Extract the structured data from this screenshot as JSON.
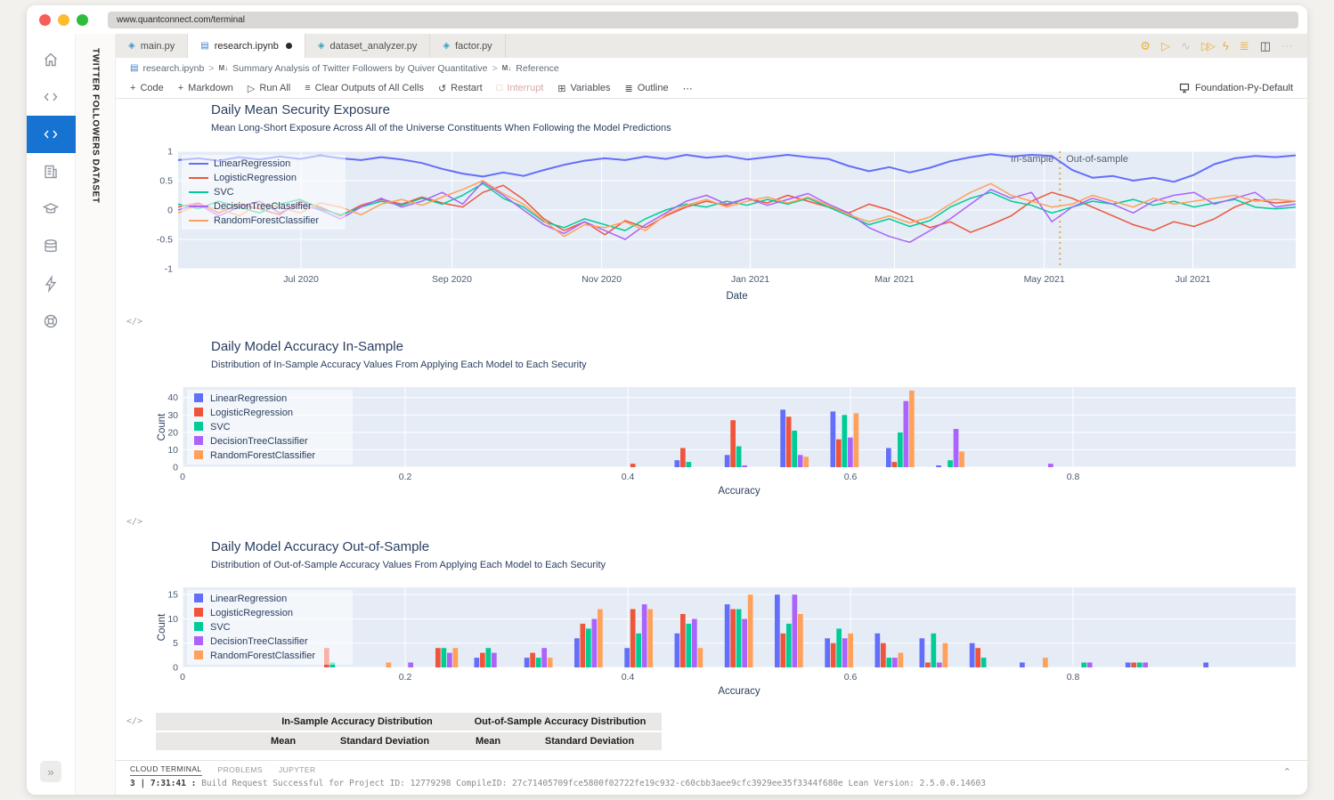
{
  "browser": {
    "url": "www.quantconnect.com/terminal"
  },
  "sidebar": {
    "icons": [
      "home",
      "code",
      "code-active",
      "organization",
      "learn",
      "data",
      "optimization",
      "support"
    ],
    "dataset_label": "TWITTER FOLLOWERS DATASET",
    "expand_label": "»"
  },
  "tabs": [
    {
      "label": "main.py",
      "active": false,
      "modified": false
    },
    {
      "label": "research.ipynb",
      "active": true,
      "modified": true
    },
    {
      "label": "dataset_analyzer.py",
      "active": false,
      "modified": false
    },
    {
      "label": "factor.py",
      "active": false,
      "modified": false
    }
  ],
  "editor_actions": [
    {
      "name": "settings-icon",
      "glyph": "⚙"
    },
    {
      "name": "run-icon",
      "glyph": "▷"
    },
    {
      "name": "debug-icon",
      "glyph": "∿"
    },
    {
      "name": "fast-forward-icon",
      "glyph": "▷▷"
    },
    {
      "name": "lightning-icon",
      "glyph": "ϟ"
    },
    {
      "name": "stack-icon",
      "glyph": "≣"
    },
    {
      "name": "split-view-icon",
      "glyph": "◫"
    },
    {
      "name": "more-icon",
      "glyph": "⋯"
    }
  ],
  "breadcrumb": {
    "file": "research.ipynb",
    "sep": ">",
    "md_marker": "M↓",
    "section": "Summary Analysis of Twitter Followers by Quiver Quantitative",
    "subsection": "Reference"
  },
  "toolbar": {
    "items": [
      {
        "label": "Code",
        "icon": "+"
      },
      {
        "label": "Markdown",
        "icon": "+"
      },
      {
        "label": "Run All",
        "icon": "▷"
      },
      {
        "label": "Clear Outputs of All Cells",
        "icon": "≡"
      },
      {
        "label": "Restart",
        "icon": "↺"
      },
      {
        "label": "Interrupt",
        "icon": "□",
        "disabled": true
      },
      {
        "label": "Variables",
        "icon": "⊞"
      },
      {
        "label": "Outline",
        "icon": "≣"
      },
      {
        "label": "⋯",
        "icon": ""
      }
    ],
    "kernel": "Foundation-Py-Default"
  },
  "cell_marker": "</>",
  "chart_data": [
    {
      "type": "line",
      "title": "Daily Mean Security Exposure",
      "subtitle": "Mean Long-Short Exposure Across All of the Universe Constituents When Following the Model Predictions",
      "xlabel": "Date",
      "ylim": [
        -1,
        1
      ],
      "yticks": [
        1,
        0.5,
        0,
        -0.5,
        -1
      ],
      "xticks": [
        {
          "label": "Jul 2020",
          "pos": 0.11
        },
        {
          "label": "Sep 2020",
          "pos": 0.245
        },
        {
          "label": "Nov 2020",
          "pos": 0.379
        },
        {
          "label": "Jan 2021",
          "pos": 0.512
        },
        {
          "label": "Mar 2021",
          "pos": 0.641
        },
        {
          "label": "May 2021",
          "pos": 0.775
        },
        {
          "label": "Jul 2021",
          "pos": 0.908
        }
      ],
      "split_line": {
        "pos": 0.789,
        "color": "#f0a63c",
        "label_left": "In-sample",
        "label_right": "Out-of-sample"
      },
      "plot_bg": "#e5ecf6",
      "legend_position": "top-left",
      "series": [
        {
          "name": "LinearRegression",
          "color": "#636EFA",
          "y": [
            0.85,
            0.88,
            0.84,
            0.9,
            0.86,
            0.91,
            0.87,
            0.93,
            0.88,
            0.85,
            0.9,
            0.86,
            0.8,
            0.7,
            0.62,
            0.57,
            0.64,
            0.58,
            0.68,
            0.77,
            0.84,
            0.88,
            0.85,
            0.91,
            0.87,
            0.94,
            0.89,
            0.92,
            0.86,
            0.9,
            0.94,
            0.9,
            0.87,
            0.75,
            0.66,
            0.73,
            0.64,
            0.72,
            0.83,
            0.9,
            0.95,
            0.91,
            0.94,
            0.92,
            0.68,
            0.55,
            0.58,
            0.5,
            0.55,
            0.48,
            0.6,
            0.78,
            0.88,
            0.92,
            0.9,
            0.93
          ]
        },
        {
          "name": "LogisticRegression",
          "color": "#EF553B",
          "y": [
            0.05,
            0.12,
            -0.05,
            0.1,
            0.02,
            -0.08,
            0.15,
            0.05,
            -0.1,
            0.08,
            0.18,
            0.1,
            0.22,
            0.12,
            0.05,
            0.3,
            0.42,
            0.18,
            -0.15,
            -0.35,
            -0.2,
            -0.42,
            -0.18,
            -0.3,
            -0.1,
            0.05,
            0.15,
            0.08,
            0.2,
            0.12,
            0.25,
            0.15,
            0.05,
            -0.05,
            0.1,
            0.0,
            -0.15,
            -0.3,
            -0.2,
            -0.38,
            -0.25,
            -0.1,
            0.15,
            0.3,
            0.2,
            0.05,
            -0.1,
            -0.25,
            -0.35,
            -0.2,
            -0.28,
            -0.15,
            0.05,
            0.18,
            0.12,
            0.15
          ]
        },
        {
          "name": "SVC",
          "color": "#00CC96",
          "y": [
            0.1,
            0.02,
            0.15,
            0.05,
            -0.05,
            0.1,
            0.18,
            0.02,
            -0.08,
            0.05,
            0.15,
            0.08,
            0.2,
            0.1,
            0.25,
            0.45,
            0.2,
            0.05,
            -0.2,
            -0.3,
            -0.15,
            -0.25,
            -0.35,
            -0.15,
            0.0,
            0.1,
            0.05,
            0.15,
            0.08,
            0.18,
            0.1,
            0.2,
            0.05,
            -0.1,
            -0.25,
            -0.15,
            -0.28,
            -0.18,
            0.05,
            0.2,
            0.3,
            0.15,
            0.08,
            -0.05,
            0.05,
            0.15,
            0.1,
            0.18,
            0.08,
            0.15,
            0.05,
            0.12,
            0.18,
            0.05,
            0.02,
            0.05
          ]
        },
        {
          "name": "DecisionTreeClassifier",
          "color": "#AB63FA",
          "y": [
            0.0,
            0.1,
            -0.1,
            0.05,
            0.15,
            -0.05,
            0.1,
            0.0,
            -0.15,
            0.05,
            0.2,
            0.05,
            0.15,
            0.3,
            0.1,
            0.48,
            0.25,
            0.0,
            -0.25,
            -0.4,
            -0.2,
            -0.35,
            -0.5,
            -0.25,
            -0.05,
            0.15,
            0.25,
            0.1,
            0.2,
            0.08,
            0.18,
            0.28,
            0.1,
            -0.05,
            -0.3,
            -0.45,
            -0.55,
            -0.35,
            -0.15,
            0.1,
            0.35,
            0.2,
            0.3,
            -0.2,
            0.05,
            0.2,
            0.1,
            -0.05,
            0.15,
            0.25,
            0.3,
            0.1,
            0.2,
            0.3,
            0.05,
            0.1
          ]
        },
        {
          "name": "RandomForestClassifier",
          "color": "#FFA15A",
          "y": [
            -0.05,
            0.08,
            0.02,
            -0.1,
            0.1,
            0.05,
            -0.05,
            0.12,
            0.05,
            -0.08,
            0.1,
            0.18,
            0.08,
            0.22,
            0.35,
            0.5,
            0.28,
            0.1,
            -0.18,
            -0.45,
            -0.25,
            -0.3,
            -0.2,
            -0.35,
            -0.08,
            0.08,
            0.18,
            0.05,
            0.15,
            0.22,
            0.12,
            0.22,
            0.08,
            -0.08,
            -0.2,
            -0.1,
            -0.22,
            -0.12,
            0.1,
            0.3,
            0.45,
            0.25,
            0.15,
            0.05,
            0.1,
            0.25,
            0.15,
            0.05,
            0.2,
            0.1,
            0.15,
            0.2,
            0.25,
            0.15,
            0.18,
            0.15
          ]
        }
      ]
    },
    {
      "type": "bar",
      "title": "Daily Model Accuracy In-Sample",
      "subtitle": "Distribution of In-Sample Accuracy Values From Applying Each Model to Each Security",
      "xlabel": "Accuracy",
      "ylabel": "Count",
      "xlim": [
        0,
        1.0
      ],
      "ylim": [
        0,
        46
      ],
      "yticks": [
        0,
        10,
        20,
        30,
        40
      ],
      "xticks": [
        0,
        0.2,
        0.4,
        0.6,
        0.8
      ],
      "plot_bg": "#e5ecf6",
      "legend_position": "top-left",
      "series_names": [
        "LinearRegression",
        "LogisticRegression",
        "SVC",
        "DecisionTreeClassifier",
        "RandomForestClassifier"
      ],
      "colors": [
        "#636EFA",
        "#EF553B",
        "#00CC96",
        "#AB63FA",
        "#FFA15A"
      ],
      "bins": [
        {
          "x": 0.41,
          "values": [
            0,
            2,
            0,
            0,
            0
          ]
        },
        {
          "x": 0.455,
          "values": [
            4,
            11,
            3,
            0,
            0
          ]
        },
        {
          "x": 0.5,
          "values": [
            7,
            27,
            12,
            1,
            0
          ]
        },
        {
          "x": 0.55,
          "values": [
            33,
            29,
            21,
            7,
            6
          ]
        },
        {
          "x": 0.595,
          "values": [
            32,
            16,
            30,
            17,
            31
          ]
        },
        {
          "x": 0.645,
          "values": [
            11,
            3,
            20,
            38,
            44
          ]
        },
        {
          "x": 0.69,
          "values": [
            1,
            0,
            4,
            22,
            9
          ]
        },
        {
          "x": 0.775,
          "values": [
            0,
            0,
            0,
            2,
            0
          ]
        }
      ]
    },
    {
      "type": "bar",
      "title": "Daily Model Accuracy Out-of-Sample",
      "subtitle": "Distribution of Out-of-Sample Accuracy Values From Applying Each Model to Each Security",
      "xlabel": "Accuracy",
      "ylabel": "Count",
      "xlim": [
        0,
        1.0
      ],
      "ylim": [
        0,
        16.5
      ],
      "yticks": [
        0,
        5,
        10,
        15
      ],
      "xticks": [
        0,
        0.2,
        0.4,
        0.6,
        0.8
      ],
      "plot_bg": "#e5ecf6",
      "legend_position": "top-left",
      "series_names": [
        "LinearRegression",
        "LogisticRegression",
        "SVC",
        "DecisionTreeClassifier",
        "RandomForestClassifier"
      ],
      "colors": [
        "#636EFA",
        "#EF553B",
        "#00CC96",
        "#AB63FA",
        "#FFA15A"
      ],
      "bins": [
        {
          "x": 0.135,
          "values": [
            0,
            4,
            1,
            0,
            0
          ]
        },
        {
          "x": 0.175,
          "values": [
            0,
            0,
            0,
            0,
            1
          ]
        },
        {
          "x": 0.2,
          "values": [
            0,
            0,
            0,
            1,
            0
          ]
        },
        {
          "x": 0.235,
          "values": [
            0,
            4,
            4,
            3,
            4
          ]
        },
        {
          "x": 0.275,
          "values": [
            2,
            3,
            4,
            3,
            0
          ]
        },
        {
          "x": 0.32,
          "values": [
            2,
            3,
            2,
            4,
            2
          ]
        },
        {
          "x": 0.365,
          "values": [
            6,
            9,
            8,
            10,
            12
          ]
        },
        {
          "x": 0.41,
          "values": [
            4,
            12,
            7,
            13,
            12
          ]
        },
        {
          "x": 0.455,
          "values": [
            7,
            11,
            9,
            10,
            4
          ]
        },
        {
          "x": 0.5,
          "values": [
            13,
            12,
            12,
            10,
            15
          ]
        },
        {
          "x": 0.545,
          "values": [
            15,
            7,
            9,
            15,
            11
          ]
        },
        {
          "x": 0.59,
          "values": [
            6,
            5,
            8,
            6,
            7
          ]
        },
        {
          "x": 0.635,
          "values": [
            7,
            5,
            2,
            2,
            3
          ]
        },
        {
          "x": 0.675,
          "values": [
            6,
            1,
            7,
            1,
            5
          ]
        },
        {
          "x": 0.72,
          "values": [
            5,
            4,
            2,
            0,
            0
          ]
        },
        {
          "x": 0.765,
          "values": [
            1,
            0,
            0,
            0,
            2
          ]
        },
        {
          "x": 0.81,
          "values": [
            0,
            0,
            1,
            1,
            0
          ]
        },
        {
          "x": 0.86,
          "values": [
            1,
            1,
            1,
            1,
            0
          ]
        },
        {
          "x": 0.93,
          "values": [
            1,
            0,
            0,
            0,
            0
          ]
        }
      ]
    }
  ],
  "table": {
    "col_groups": [
      "In-Sample Accuracy Distribution",
      "Out-of-Sample Accuracy Distribution"
    ],
    "sub_headers": [
      "Mean",
      "Standard Deviation",
      "Mean",
      "Standard Deviation"
    ]
  },
  "terminal": {
    "tabs": [
      "CLOUD TERMINAL",
      "PROBLEMS",
      "JUPYTER"
    ],
    "log_prefix": "3 | 7:31:41",
    "log_sep": ":",
    "log_message": "Build Request Successful for Project ID: 12779298 CompileID: 27c71405709fce5800f02722fe19c932-c60cbb3aee9cfc3929ee35f3344f680e Lean Version: 2.5.0.0.14603"
  },
  "colors": {
    "accent_blue": "#1673d2",
    "gold": "#edb13f",
    "plot_bg": "#e5ecf6"
  }
}
